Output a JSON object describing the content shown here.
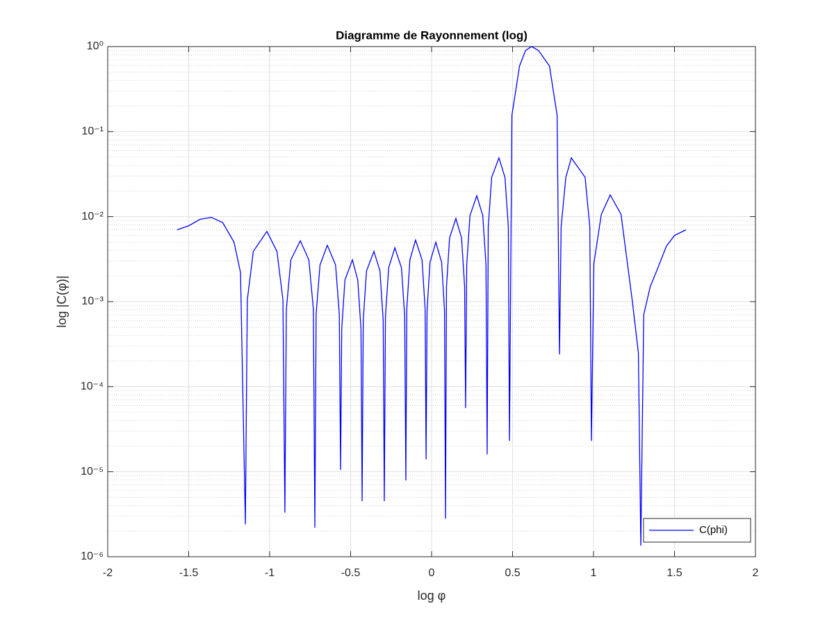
{
  "chart_data": {
    "type": "line",
    "title": "Diagramme de Rayonnement (log)",
    "xlabel": "log φ",
    "ylabel": "log |C(φ)|",
    "x": [
      -1.571,
      -1.5,
      -1.43,
      -1.36,
      -1.29,
      -1.22,
      -1.18,
      -1.15,
      -1.138,
      -1.101,
      -1.017,
      -0.955,
      -0.918,
      -0.906,
      -0.897,
      -0.869,
      -0.811,
      -0.758,
      -0.73,
      -0.721,
      -0.713,
      -0.689,
      -0.644,
      -0.593,
      -0.57,
      -0.562,
      -0.555,
      -0.535,
      -0.489,
      -0.456,
      -0.436,
      -0.429,
      -0.422,
      -0.402,
      -0.356,
      -0.319,
      -0.299,
      -0.292,
      -0.285,
      -0.265,
      -0.227,
      -0.186,
      -0.166,
      -0.159,
      -0.153,
      -0.134,
      -0.099,
      -0.059,
      -0.04,
      -0.034,
      -0.028,
      -0.01,
      0.026,
      0.062,
      0.08,
      0.086,
      0.092,
      0.111,
      0.15,
      0.185,
      0.204,
      0.21,
      0.217,
      0.237,
      0.279,
      0.316,
      0.336,
      0.343,
      0.35,
      0.371,
      0.416,
      0.453,
      0.474,
      0.481,
      0.496,
      0.543,
      0.58,
      0.618,
      0.66,
      0.728,
      0.775,
      0.79,
      0.8,
      0.829,
      0.863,
      0.948,
      0.977,
      0.987,
      1.002,
      1.048,
      1.103,
      1.17,
      1.24,
      1.277,
      1.292,
      1.31,
      1.35,
      1.39,
      1.45,
      1.5,
      1.571
    ],
    "series": [
      {
        "name": "C(phi)",
        "color": "#0000ff",
        "values": [
          0.007,
          0.0078,
          0.0093,
          0.0098,
          0.0085,
          0.005,
          0.0022,
          2.4e-06,
          0.00105,
          0.0039,
          0.0067,
          0.0039,
          0.00105,
          3.3e-06,
          0.00081,
          0.0031,
          0.0052,
          0.0031,
          0.00081,
          2.2e-06,
          0.00072,
          0.0027,
          0.0046,
          0.0027,
          0.00072,
          1.05e-05,
          0.00048,
          0.0018,
          0.0031,
          0.0018,
          0.00048,
          4.5e-06,
          0.00061,
          0.0023,
          0.0039,
          0.0023,
          0.00061,
          4.5e-06,
          0.00067,
          0.0025,
          0.0043,
          0.0025,
          0.00067,
          7.9e-06,
          0.00083,
          0.0031,
          0.0053,
          0.0031,
          0.00083,
          1.4e-05,
          0.00078,
          0.0029,
          0.005,
          0.0029,
          0.00078,
          2.8e-06,
          0.0015,
          0.0056,
          0.0095,
          0.0056,
          0.0015,
          5.6e-05,
          0.0027,
          0.0103,
          0.0176,
          0.0103,
          0.0027,
          1.6e-05,
          0.0076,
          0.029,
          0.049,
          0.029,
          0.0076,
          2.3e-05,
          0.156,
          0.59,
          0.9,
          1,
          0.9,
          0.59,
          0.156,
          0.00024,
          0.0076,
          0.029,
          0.049,
          0.029,
          0.0076,
          2.3e-05,
          0.0028,
          0.0106,
          0.018,
          0.0106,
          0.001,
          0.00025,
          1.35e-06,
          0.0007,
          0.0015,
          0.0023,
          0.0045,
          0.006,
          0.007
        ]
      }
    ],
    "xlim": [
      -2,
      2
    ],
    "xticks": [
      -2,
      -1.5,
      -1,
      -0.5,
      0,
      0.5,
      1,
      1.5,
      2
    ],
    "ylim": [
      1e-06,
      1
    ],
    "ylog": true,
    "yticks": [
      {
        "value": 1e-06,
        "label": "10⁻⁶"
      },
      {
        "value": 1e-05,
        "label": "10⁻⁵"
      },
      {
        "value": 0.0001,
        "label": "10⁻⁴"
      },
      {
        "value": 0.001,
        "label": "10⁻³"
      },
      {
        "value": 0.01,
        "label": "10⁻²"
      },
      {
        "value": 0.1,
        "label": "10⁻¹"
      },
      {
        "value": 1,
        "label": "10⁰"
      }
    ],
    "grid": true,
    "minor_grid": true,
    "legend_loc": "southeast"
  }
}
